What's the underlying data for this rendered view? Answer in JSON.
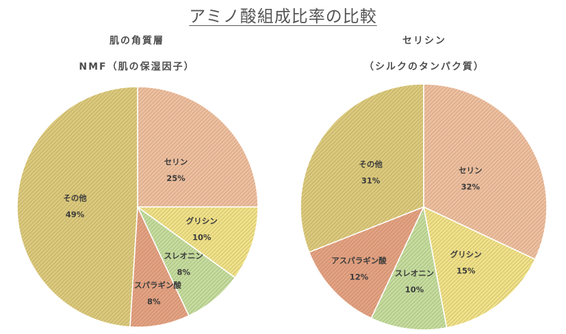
{
  "title": "アミノ酸組成比率の比較",
  "chart_data": [
    {
      "type": "pie",
      "title_line1": "肌の角質層",
      "title_line2": "NMF（肌の保湿因子）",
      "slices": [
        {
          "label": "セリン",
          "value": 25,
          "pct": "25%",
          "color": "#efc0a2"
        },
        {
          "label": "グリシン",
          "value": 10,
          "pct": "10%",
          "color": "#f1e38a"
        },
        {
          "label": "スレオニン",
          "value": 8,
          "pct": "8%",
          "color": "#c4dea0"
        },
        {
          "label": "アスパラギン酸",
          "value": 8,
          "pct": "8%",
          "color": "#e5a284"
        },
        {
          "label": "その他",
          "value": 49,
          "pct": "49%",
          "color": "#dccb7e"
        }
      ]
    },
    {
      "type": "pie",
      "title_line1": "セリシン",
      "title_line2": "（シルクのタンパク質）",
      "slices": [
        {
          "label": "セリン",
          "value": 32,
          "pct": "32%",
          "color": "#efc0a2"
        },
        {
          "label": "グリシン",
          "value": 15,
          "pct": "15%",
          "color": "#f1e38a"
        },
        {
          "label": "スレオニン",
          "value": 10,
          "pct": "10%",
          "color": "#c4dea0"
        },
        {
          "label": "アスパラギン酸",
          "value": 12,
          "pct": "12%",
          "color": "#e5a284"
        },
        {
          "label": "その他",
          "value": 31,
          "pct": "31%",
          "color": "#dccb7e"
        }
      ]
    }
  ]
}
